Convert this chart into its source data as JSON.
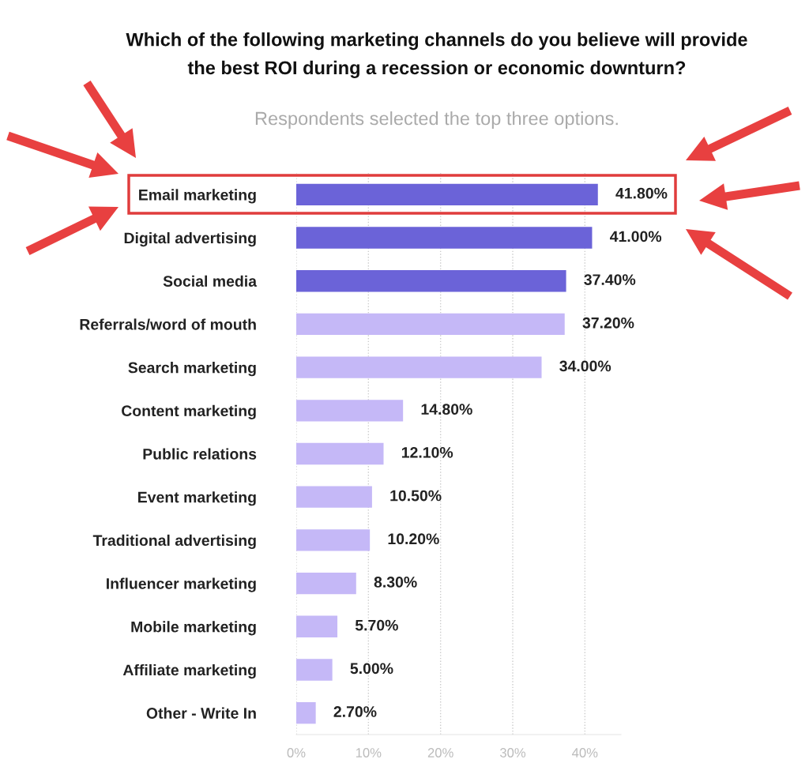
{
  "chart_data": {
    "type": "bar",
    "orientation": "horizontal",
    "title": "Which of the following marketing channels do you believe will provide\nthe best ROI during a recession or economic downturn?",
    "subtitle": "Respondents selected the top three options.",
    "categories": [
      "Email marketing",
      "Digital advertising",
      "Social media",
      "Referrals/word of mouth",
      "Search marketing",
      "Content marketing",
      "Public relations",
      "Event marketing",
      "Traditional advertising",
      "Influencer marketing",
      "Mobile marketing",
      "Affiliate marketing",
      "Other - Write In"
    ],
    "values": [
      41.8,
      41.0,
      37.4,
      37.2,
      34.0,
      14.8,
      12.1,
      10.5,
      10.2,
      8.3,
      5.7,
      5.0,
      2.7
    ],
    "value_labels": [
      "41.80%",
      "41.00%",
      "37.40%",
      "37.20%",
      "34.00%",
      "14.80%",
      "12.10%",
      "10.50%",
      "10.20%",
      "8.30%",
      "5.70%",
      "5.00%",
      "2.70%"
    ],
    "colors": [
      "#6b63d8",
      "#6b63d8",
      "#6b63d8",
      "#c5b8f7",
      "#c5b8f7",
      "#c5b8f7",
      "#c5b8f7",
      "#c5b8f7",
      "#c5b8f7",
      "#c5b8f7",
      "#c5b8f7",
      "#c5b8f7",
      "#c5b8f7"
    ],
    "xlim": [
      0,
      45
    ],
    "xticks": [
      {
        "value": 0,
        "label": "0%"
      },
      {
        "value": 10,
        "label": "10%"
      },
      {
        "value": 20,
        "label": "20%"
      },
      {
        "value": 30,
        "label": "30%"
      },
      {
        "value": 40,
        "label": "40%"
      }
    ],
    "grid": "x",
    "legend": false
  }
}
